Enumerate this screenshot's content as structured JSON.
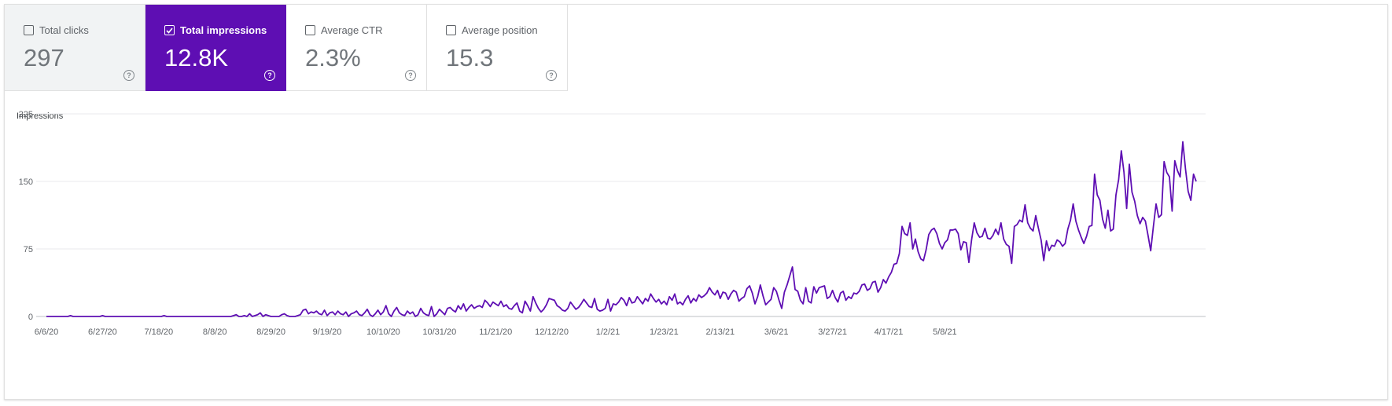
{
  "metrics": [
    {
      "label": "Total clicks",
      "value": "297",
      "selected": false
    },
    {
      "label": "Total impressions",
      "value": "12.8K",
      "selected": true
    },
    {
      "label": "Average CTR",
      "value": "2.3%",
      "selected": false
    },
    {
      "label": "Average position",
      "value": "15.3",
      "selected": false
    }
  ],
  "help_icon": "question-circle-icon",
  "colors": {
    "accent": "#5e0eb3",
    "line": "#5e0eb3",
    "grid": "#e8eaed"
  },
  "chart_data": {
    "type": "line",
    "ylabel": "Impressions",
    "ylim": [
      0,
      225
    ],
    "yticks": [
      "0",
      "75",
      "150",
      "225"
    ],
    "x_tick_labels": [
      "6/6/20",
      "6/27/20",
      "7/18/20",
      "8/8/20",
      "8/29/20",
      "9/19/20",
      "10/10/20",
      "10/31/20",
      "11/21/20",
      "12/12/20",
      "1/2/21",
      "1/23/21",
      "2/13/21",
      "3/6/21",
      "3/27/21",
      "4/17/21",
      "5/8/21"
    ],
    "x_start": "2020-06-06",
    "grid": true,
    "series": [
      {
        "values": [
          0,
          0,
          0,
          0,
          0,
          0,
          0,
          0,
          0,
          1,
          0,
          0,
          0,
          0,
          0,
          0,
          0,
          0,
          0,
          0,
          0,
          1,
          0,
          0,
          0,
          0,
          0,
          0,
          0,
          0,
          0,
          0,
          0,
          0,
          0,
          0,
          0,
          0,
          0,
          0,
          0,
          0,
          0,
          0,
          1,
          0,
          0,
          0,
          0,
          0,
          0,
          0,
          0,
          0,
          0,
          0,
          0,
          0,
          0,
          0,
          0,
          0,
          0,
          0,
          0,
          0,
          0,
          0,
          0,
          0,
          1,
          2,
          0,
          0,
          1,
          0,
          3,
          0,
          1,
          2,
          4,
          0,
          2,
          1,
          0,
          0,
          0,
          0,
          2,
          3,
          1,
          0,
          0,
          0,
          1,
          2,
          7,
          8,
          3,
          5,
          4,
          6,
          3,
          2,
          7,
          1,
          4,
          5,
          2,
          6,
          3,
          2,
          5,
          0,
          3,
          4,
          6,
          2,
          1,
          4,
          8,
          2,
          0,
          3,
          7,
          2,
          5,
          12,
          3,
          0,
          6,
          10,
          4,
          2,
          1,
          6,
          3,
          5,
          0,
          2,
          9,
          4,
          2,
          1,
          11,
          0,
          3,
          8,
          5,
          2,
          9,
          10,
          7,
          5,
          12,
          8,
          14,
          6,
          10,
          13,
          9,
          11,
          12,
          10,
          18,
          15,
          11,
          16,
          14,
          12,
          17,
          11,
          13,
          9,
          8,
          12,
          15,
          6,
          4,
          17,
          12,
          6,
          22,
          15,
          9,
          5,
          8,
          13,
          20,
          19,
          18,
          12,
          10,
          7,
          6,
          9,
          16,
          12,
          8,
          10,
          14,
          19,
          15,
          11,
          10,
          20,
          8,
          6,
          7,
          9,
          19,
          6,
          14,
          13,
          16,
          21,
          18,
          12,
          21,
          15,
          16,
          22,
          18,
          14,
          20,
          17,
          25,
          20,
          16,
          19,
          14,
          17,
          13,
          22,
          18,
          25,
          14,
          16,
          13,
          19,
          23,
          15,
          20,
          17,
          24,
          21,
          23,
          26,
          32,
          27,
          24,
          29,
          20,
          27,
          26,
          19,
          25,
          29,
          27,
          17,
          20,
          22,
          31,
          34,
          26,
          14,
          22,
          35,
          23,
          13,
          16,
          19,
          32,
          28,
          18,
          9,
          27,
          35,
          45,
          55,
          30,
          28,
          18,
          14,
          32,
          17,
          15,
          33,
          26,
          32,
          33,
          34,
          20,
          22,
          29,
          21,
          16,
          26,
          28,
          18,
          22,
          20,
          26,
          25,
          28,
          35,
          36,
          29,
          31,
          38,
          39,
          27,
          32,
          41,
          37,
          44,
          49,
          58,
          59,
          70,
          100,
          92,
          90,
          104,
          75,
          86,
          72,
          64,
          62,
          74,
          91,
          96,
          98,
          92,
          81,
          75,
          82,
          85,
          96,
          96,
          97,
          92,
          74,
          83,
          82,
          60,
          85,
          104,
          93,
          88,
          89,
          98,
          87,
          86,
          90,
          97,
          91,
          104,
          86,
          80,
          78,
          59,
          100,
          102,
          107,
          105,
          124,
          104,
          98,
          95,
          112,
          98,
          85,
          62,
          84,
          73,
          79,
          78,
          85,
          83,
          78,
          81,
          97,
          107,
          125,
          106,
          96,
          88,
          81,
          89,
          100,
          101,
          158,
          135,
          129,
          108,
          98,
          118,
          95,
          97,
          135,
          152,
          184,
          160,
          120,
          169,
          138,
          128,
          112,
          103,
          110,
          106,
          90,
          73,
          100,
          125,
          110,
          113,
          172,
          160,
          155,
          117,
          173,
          162,
          155,
          194,
          164,
          139,
          129,
          158,
          150
        ]
      }
    ]
  }
}
